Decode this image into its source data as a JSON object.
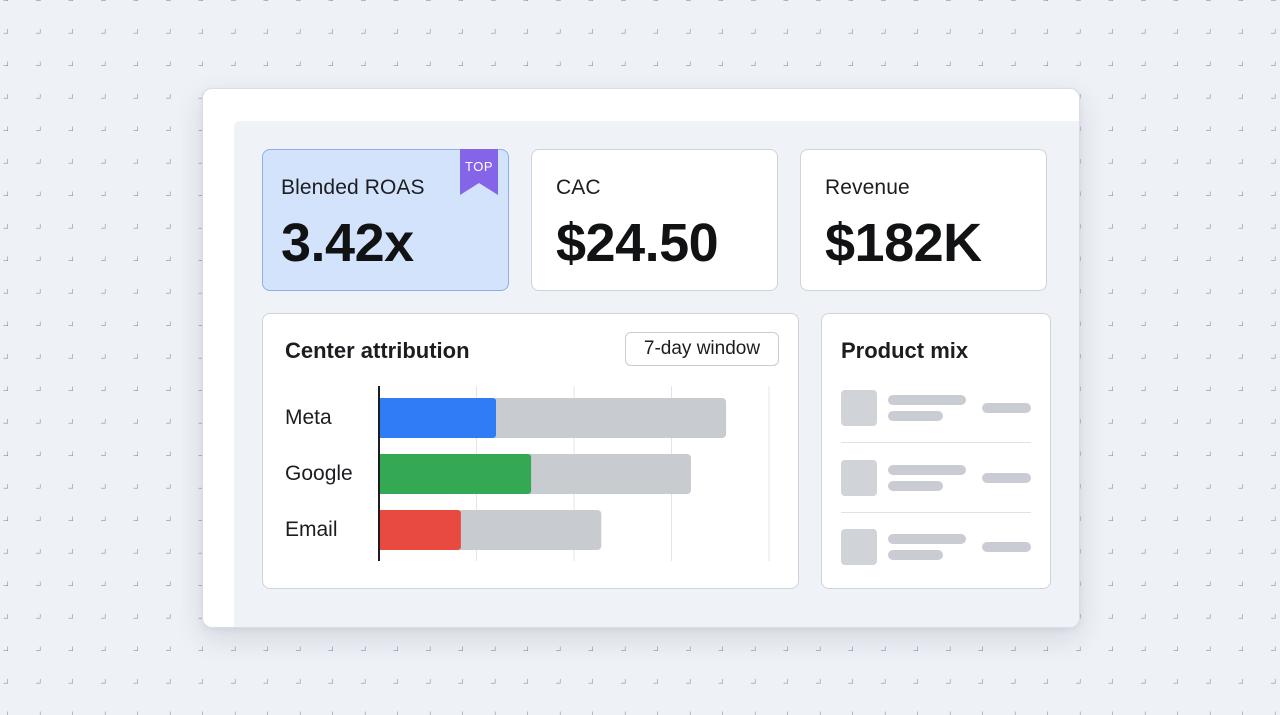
{
  "kpis": [
    {
      "label": "Blended ROAS",
      "value": "3.42x",
      "badge": "TOP"
    },
    {
      "label": "CAC",
      "value": "$24.50"
    },
    {
      "label": "Revenue",
      "value": "$182K"
    }
  ],
  "attribution": {
    "title": "Center attribution",
    "window_label": "7-day window"
  },
  "chart_data": {
    "type": "bar",
    "orientation": "horizontal",
    "stacked": true,
    "categories": [
      "Meta",
      "Google",
      "Email"
    ],
    "series": [
      {
        "values": [
          0.3,
          0.39,
          0.21
        ],
        "colors": [
          "#2f7cf6",
          "#34a853",
          "#e94a3f"
        ]
      },
      {
        "values": [
          0.59,
          0.41,
          0.36
        ],
        "color": "#c8cbcf"
      }
    ],
    "xlim": [
      0,
      1
    ],
    "grid": true,
    "legend": "none"
  },
  "product_mix": {
    "title": "Product mix",
    "row_count": 3
  },
  "colors": {
    "background": "#eef1f6",
    "highlight_card": "#d3e3fc",
    "highlight_border": "#8fb0e6",
    "badge": "#8465e8",
    "meta": "#2f7cf6",
    "google": "#34a853",
    "email": "#e94a3f",
    "remainder": "#c8cbcf"
  }
}
